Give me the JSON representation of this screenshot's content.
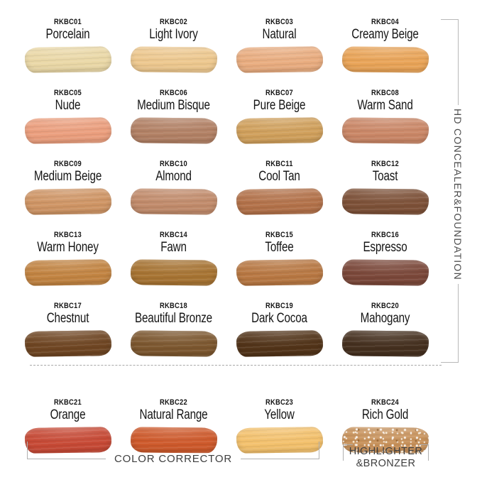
{
  "sections": {
    "right_label": "HD CONCEALER&FOUNDATION",
    "color_corrector_label": "COLOR CORRECTOR",
    "highlighter_label_line1": "HIGHLIGHTER",
    "highlighter_label_line2": "&BRONZER"
  },
  "colors": {
    "background": "#ffffff",
    "label_text": "#151515",
    "bracket_line": "#b3b3b3",
    "section_text": "#3f3f3f",
    "divider": "#a8a8a8"
  },
  "swatches": [
    {
      "code": "RKBC01",
      "name": "Porcelain",
      "color": "#ead8a7",
      "group": "hd-concealer-foundation"
    },
    {
      "code": "RKBC02",
      "name": "Light Ivory",
      "color": "#edc88f",
      "group": "hd-concealer-foundation"
    },
    {
      "code": "RKBC03",
      "name": "Natural",
      "color": "#e9ad80",
      "group": "hd-concealer-foundation"
    },
    {
      "code": "RKBC04",
      "name": "Creamy Beige",
      "color": "#e9a458",
      "group": "hd-concealer-foundation"
    },
    {
      "code": "RKBC05",
      "name": "Nude",
      "color": "#eb9f7e",
      "group": "hd-concealer-foundation"
    },
    {
      "code": "RKBC06",
      "name": "Medium Bisque",
      "color": "#b28165",
      "group": "hd-concealer-foundation"
    },
    {
      "code": "RKBC07",
      "name": "Pure Beige",
      "color": "#d0a05c",
      "group": "hd-concealer-foundation"
    },
    {
      "code": "RKBC08",
      "name": "Warm Sand",
      "color": "#ca8767",
      "group": "hd-concealer-foundation"
    },
    {
      "code": "RKBC09",
      "name": "Medium Beige",
      "color": "#cf9565",
      "group": "hd-concealer-foundation"
    },
    {
      "code": "RKBC10",
      "name": "Almond",
      "color": "#c18b6b",
      "group": "hd-concealer-foundation"
    },
    {
      "code": "RKBC11",
      "name": "Cool Tan",
      "color": "#b3724a",
      "group": "hd-concealer-foundation"
    },
    {
      "code": "RKBC12",
      "name": "Toast",
      "color": "#7d5138",
      "group": "hd-concealer-foundation"
    },
    {
      "code": "RKBC13",
      "name": "Warm Honey",
      "color": "#c28442",
      "group": "hd-concealer-foundation"
    },
    {
      "code": "RKBC14",
      "name": "Fawn",
      "color": "#a77433",
      "group": "hd-concealer-foundation"
    },
    {
      "code": "RKBC15",
      "name": "Toffee",
      "color": "#b87843",
      "group": "hd-concealer-foundation"
    },
    {
      "code": "RKBC16",
      "name": "Espresso",
      "color": "#7b483a",
      "group": "hd-concealer-foundation"
    },
    {
      "code": "RKBC17",
      "name": "Chestnut",
      "color": "#6f4623",
      "group": "hd-concealer-foundation"
    },
    {
      "code": "RKBC18",
      "name": "Beautiful Bronze",
      "color": "#7c572f",
      "group": "hd-concealer-foundation"
    },
    {
      "code": "RKBC19",
      "name": "Dark Cocoa",
      "color": "#523419",
      "group": "hd-concealer-foundation"
    },
    {
      "code": "RKBC20",
      "name": "Mahogany",
      "color": "#45301f",
      "group": "hd-concealer-foundation"
    },
    {
      "code": "RKBC21",
      "name": "Orange",
      "color": "#c74a36",
      "group": "color-corrector"
    },
    {
      "code": "RKBC22",
      "name": "Natural Range",
      "color": "#ce5a2c",
      "group": "color-corrector"
    },
    {
      "code": "RKBC23",
      "name": "Yellow",
      "color": "#f3c16d",
      "group": "color-corrector"
    },
    {
      "code": "RKBC24",
      "name": "Rich Gold",
      "color": "#c7915a",
      "group": "highlighter-bronzer",
      "shimmer": true
    }
  ]
}
